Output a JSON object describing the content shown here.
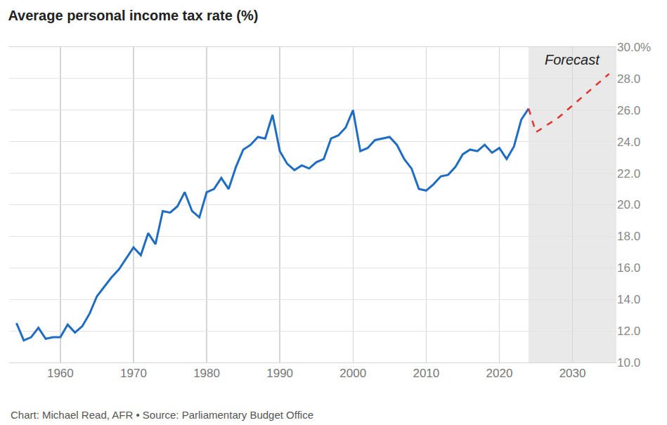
{
  "chart_data": {
    "type": "line",
    "title": "Average personal income tax rate (%)",
    "source": "Chart: Michael Read, AFR • Source: Parliamentary Budget Office",
    "series": [
      {
        "color": "#1f6dc2",
        "line_style": "solid",
        "x": [
          1954,
          1955,
          1956,
          1957,
          1958,
          1959,
          1960,
          1961,
          1962,
          1963,
          1964,
          1965,
          1966,
          1967,
          1968,
          1969,
          1970,
          1971,
          1972,
          1973,
          1974,
          1975,
          1976,
          1977,
          1978,
          1979,
          1980,
          1981,
          1982,
          1983,
          1984,
          1985,
          1986,
          1987,
          1988,
          1989,
          1990,
          1991,
          1992,
          1993,
          1994,
          1995,
          1996,
          1997,
          1998,
          1999,
          2000,
          2001,
          2002,
          2003,
          2004,
          2005,
          2006,
          2007,
          2008,
          2009,
          2010,
          2011,
          2012,
          2013,
          2014,
          2015,
          2016,
          2017,
          2018,
          2019,
          2020,
          2021,
          2022,
          2023,
          2024
        ],
        "values": [
          12.5,
          11.4,
          11.6,
          12.2,
          11.5,
          11.6,
          11.6,
          12.4,
          11.9,
          12.3,
          13.1,
          14.2,
          14.8,
          15.4,
          15.9,
          16.6,
          17.3,
          16.8,
          18.2,
          17.5,
          19.6,
          19.5,
          19.9,
          20.8,
          19.6,
          19.2,
          20.8,
          21.0,
          21.7,
          21.0,
          22.4,
          23.5,
          23.8,
          24.3,
          24.2,
          25.7,
          23.4,
          22.6,
          22.2,
          22.5,
          22.3,
          22.7,
          22.9,
          24.2,
          24.4,
          24.9,
          26.0,
          23.4,
          23.6,
          24.1,
          24.2,
          24.3,
          23.8,
          22.9,
          22.3,
          21.0,
          20.9,
          21.3,
          21.8,
          21.9,
          22.4,
          23.2,
          23.5,
          23.4,
          23.8,
          23.3,
          23.6,
          22.9,
          23.7,
          25.4,
          26.1
        ]
      },
      {
        "color": "#e0332b",
        "line_style": "dash",
        "x": [
          2024,
          2025,
          2026,
          2027,
          2028,
          2029,
          2030,
          2031,
          2032,
          2033,
          2034,
          2035
        ],
        "values": [
          26.1,
          24.6,
          24.9,
          25.2,
          25.5,
          25.9,
          26.3,
          26.7,
          27.1,
          27.5,
          27.9,
          28.3
        ]
      }
    ],
    "shaded_region": {
      "label": "Forecast",
      "x": [
        2024,
        2036
      ]
    },
    "xlim": [
      1953,
      2036
    ],
    "xticks": [
      1960,
      1970,
      1980,
      1990,
      2000,
      2010,
      2020,
      2030
    ],
    "ylim": [
      10,
      30
    ],
    "yticks": [
      {
        "value": 10,
        "label": "10.0"
      },
      {
        "value": 12,
        "label": "12.0"
      },
      {
        "value": 14,
        "label": "14.0"
      },
      {
        "value": 16,
        "label": "16.0"
      },
      {
        "value": 18,
        "label": "18.0"
      },
      {
        "value": 20,
        "label": "20.0"
      },
      {
        "value": 22,
        "label": "22.0"
      },
      {
        "value": 24,
        "label": "24.0"
      },
      {
        "value": 26,
        "label": "26.0"
      },
      {
        "value": 28,
        "label": "28.0"
      },
      {
        "value": 30,
        "label": "30.0%"
      }
    ],
    "grid": true
  }
}
